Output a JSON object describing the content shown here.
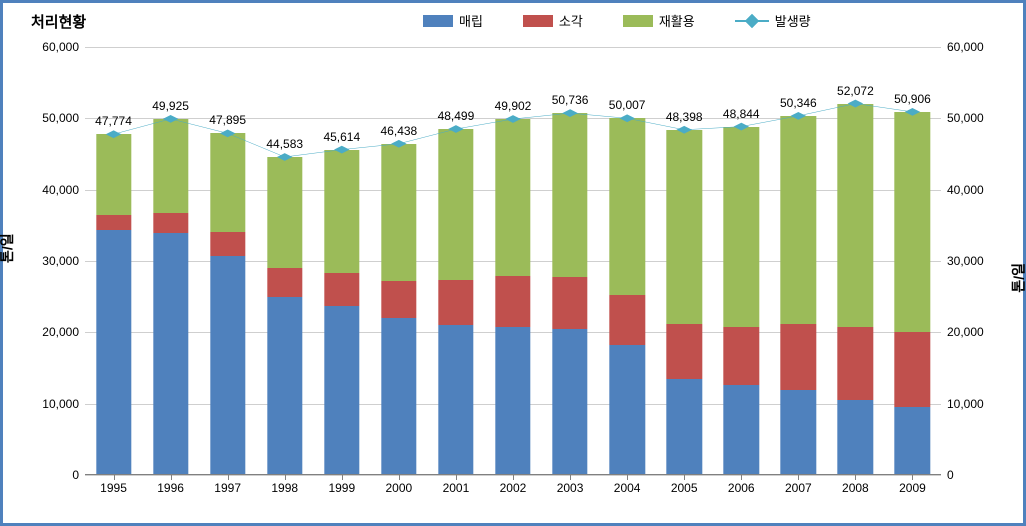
{
  "title": "처리현황",
  "legend": {
    "landfill": "매립",
    "incineration": "소각",
    "recycle": "재활용",
    "generation": "발생량"
  },
  "y_axis": {
    "left_title": "톤/일",
    "right_title": "톤/일",
    "min": 0,
    "max": 60000,
    "step": 10000,
    "tick_labels": [
      "0",
      "10,000",
      "20,000",
      "30,000",
      "40,000",
      "50,000",
      "60,000"
    ]
  },
  "colors": {
    "landfill": "#4f81bd",
    "incineration": "#c0504d",
    "recycle": "#9bbb59",
    "line": "#4bacc6",
    "marker": "#4bacc6",
    "grid": "#cfcfcf",
    "baseline": "#808080",
    "border": "#4f81bd",
    "background": "#ffffff",
    "text": "#000000"
  },
  "style": {
    "bar_width_ratio": 0.62,
    "line_width": 2,
    "marker_size": 7,
    "title_fontsize": 15,
    "tick_fontsize": 12,
    "label_fontsize": 12
  },
  "categories": [
    "1995",
    "1996",
    "1997",
    "1998",
    "1999",
    "2000",
    "2001",
    "2002",
    "2003",
    "2004",
    "2005",
    "2006",
    "2007",
    "2008",
    "2009"
  ],
  "totals": [
    47774,
    49925,
    47895,
    44583,
    45614,
    46438,
    48499,
    49902,
    50736,
    50007,
    48398,
    48844,
    50346,
    52072,
    50906
  ],
  "total_labels": [
    "47,774",
    "49,925",
    "47,895",
    "44,583",
    "45,614",
    "46,438",
    "48,499",
    "49,902",
    "50,736",
    "50,007",
    "48,398",
    "48,844",
    "50,346",
    "52,072",
    "50,906"
  ],
  "series": {
    "landfill": [
      34400,
      33900,
      30700,
      25000,
      23700,
      22000,
      21000,
      20800,
      20500,
      18200,
      13400,
      12600,
      11900,
      10500,
      9500
    ],
    "incineration": [
      2000,
      2800,
      3400,
      4000,
      4600,
      5200,
      6300,
      7100,
      7300,
      7000,
      7800,
      8200,
      9300,
      10300,
      10500
    ],
    "recycle": [
      11374,
      13225,
      13795,
      15583,
      17314,
      19238,
      21199,
      22002,
      22936,
      24807,
      27198,
      28044,
      29146,
      31272,
      30906
    ]
  }
}
